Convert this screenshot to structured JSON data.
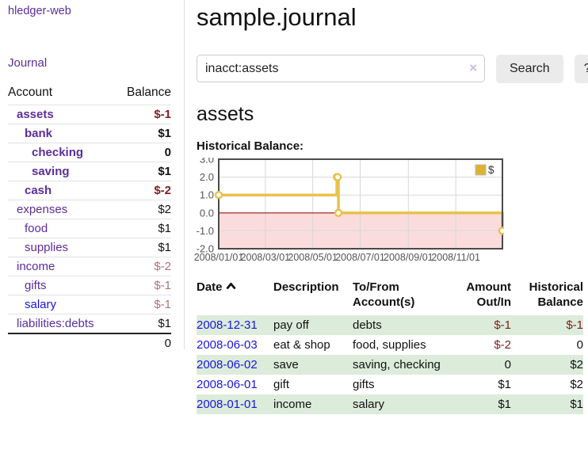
{
  "colors": {
    "link-purple": "#5b2d9b",
    "link-blue": "#1a14e0",
    "negative-strong": "#7e1e1e",
    "negative-muted": "#b07272",
    "row-green": "#dcecdb",
    "button-bg": "#ebebeb",
    "chart-line": "#e8c24b",
    "chart-swatch": "#ddb231",
    "chart-negative-fill": "#fbdcdc",
    "chart-zero-line": "#991111"
  },
  "sidebar": {
    "brand": "hledger-web",
    "nav_journal": "Journal",
    "table": {
      "account_header": "Account",
      "balance_header": "Balance",
      "rows": [
        {
          "account": "assets",
          "balance": "$-1"
        },
        {
          "account": "bank",
          "balance": "$1"
        },
        {
          "account": "checking",
          "balance": "0"
        },
        {
          "account": "saving",
          "balance": "$1"
        },
        {
          "account": "cash",
          "balance": "$-2"
        },
        {
          "account": "expenses",
          "balance": "$2"
        },
        {
          "account": "food",
          "balance": "$1"
        },
        {
          "account": "supplies",
          "balance": "$1"
        },
        {
          "account": "income",
          "balance": "$-2"
        },
        {
          "account": "gifts",
          "balance": "$-1"
        },
        {
          "account": "salary",
          "balance": "$-1"
        },
        {
          "account": "liabilities:debts",
          "balance": "$1"
        }
      ],
      "total": "0"
    }
  },
  "main": {
    "title": "sample.journal",
    "search": {
      "value": "inacct:assets",
      "clear": "×",
      "button": "Search",
      "help": "?"
    },
    "account_title": "assets",
    "chart_title": "Historical Balance:"
  },
  "chart_data": {
    "type": "line",
    "style": "step",
    "title": "Historical Balance of assets",
    "series": [
      {
        "name": "$",
        "points": [
          {
            "date": "2008-01-01",
            "day": 0,
            "value": 1
          },
          {
            "date": "2008-06-01",
            "day": 152,
            "value": 2
          },
          {
            "date": "2008-06-02",
            "day": 153,
            "value": 2
          },
          {
            "date": "2008-06-03",
            "day": 154,
            "value": 0
          },
          {
            "date": "2008-12-31",
            "day": 365,
            "value": -1
          }
        ]
      }
    ],
    "x_domain_days": [
      0,
      365
    ],
    "x_ticks": [
      {
        "day": 0,
        "label": "2008/01/01"
      },
      {
        "day": 60,
        "label": "2008/03/01"
      },
      {
        "day": 121,
        "label": "2008/05/01"
      },
      {
        "day": 182,
        "label": "2008/07/01"
      },
      {
        "day": 244,
        "label": "2008/09/01"
      },
      {
        "day": 305,
        "label": "2008/11/01"
      }
    ],
    "y_ticks": [
      3.0,
      2.0,
      1.0,
      0.0,
      -1.0,
      -2.0
    ],
    "ylim": [
      -2,
      3
    ],
    "grid": true,
    "legend_position": "top-right",
    "negative_region_shaded": true
  },
  "register": {
    "headers": {
      "date": "Date",
      "description": "Description",
      "accounts": "To/From Account(s)",
      "amount": "Amount Out/In",
      "balance": "Historical Balance"
    },
    "rows": [
      {
        "date": "2008-12-31",
        "description": "pay off",
        "accounts": "debts",
        "amount": "$-1",
        "balance": "$-1"
      },
      {
        "date": "2008-06-03",
        "description": "eat & shop",
        "accounts": "food, supplies",
        "amount": "$-2",
        "balance": "0"
      },
      {
        "date": "2008-06-02",
        "description": "save",
        "accounts": "saving, checking",
        "amount": "0",
        "balance": "$2"
      },
      {
        "date": "2008-06-01",
        "description": "gift",
        "accounts": "gifts",
        "amount": "$1",
        "balance": "$2"
      },
      {
        "date": "2008-01-01",
        "description": "income",
        "accounts": "salary",
        "amount": "$1",
        "balance": "$1"
      }
    ]
  }
}
